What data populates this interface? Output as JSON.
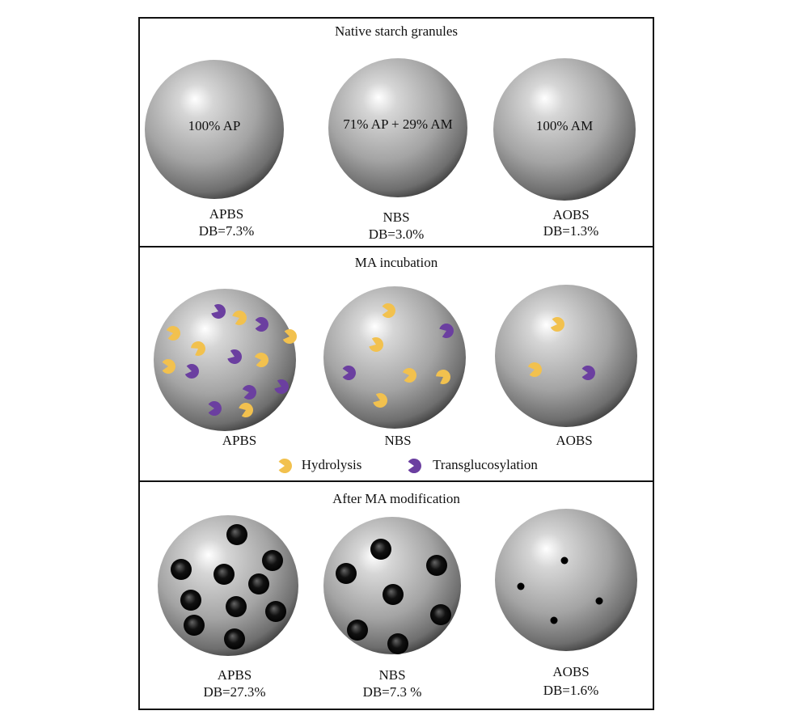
{
  "panels": [
    {
      "title": "Native starch granules",
      "granules": [
        {
          "content": "100% AP",
          "name": "APBS",
          "db": "DB=7.3%"
        },
        {
          "content": "71% AP + 29% AM",
          "name": "NBS",
          "db": "DB=3.0%"
        },
        {
          "content": "100% AM",
          "name": "AOBS",
          "db": "DB=1.3%"
        }
      ]
    },
    {
      "title": "MA incubation",
      "granules": [
        {
          "name": "APBS"
        },
        {
          "name": "NBS"
        },
        {
          "name": "AOBS"
        }
      ],
      "legend": [
        {
          "label": "Hydrolysis"
        },
        {
          "label": "Transglucosylation"
        }
      ]
    },
    {
      "title": "After MA modification",
      "granules": [
        {
          "name": "APBS",
          "db": "DB=27.3%"
        },
        {
          "name": "NBS",
          "db": "DB=7.3 %"
        },
        {
          "name": "AOBS",
          "db": "DB=1.6%"
        }
      ]
    }
  ]
}
